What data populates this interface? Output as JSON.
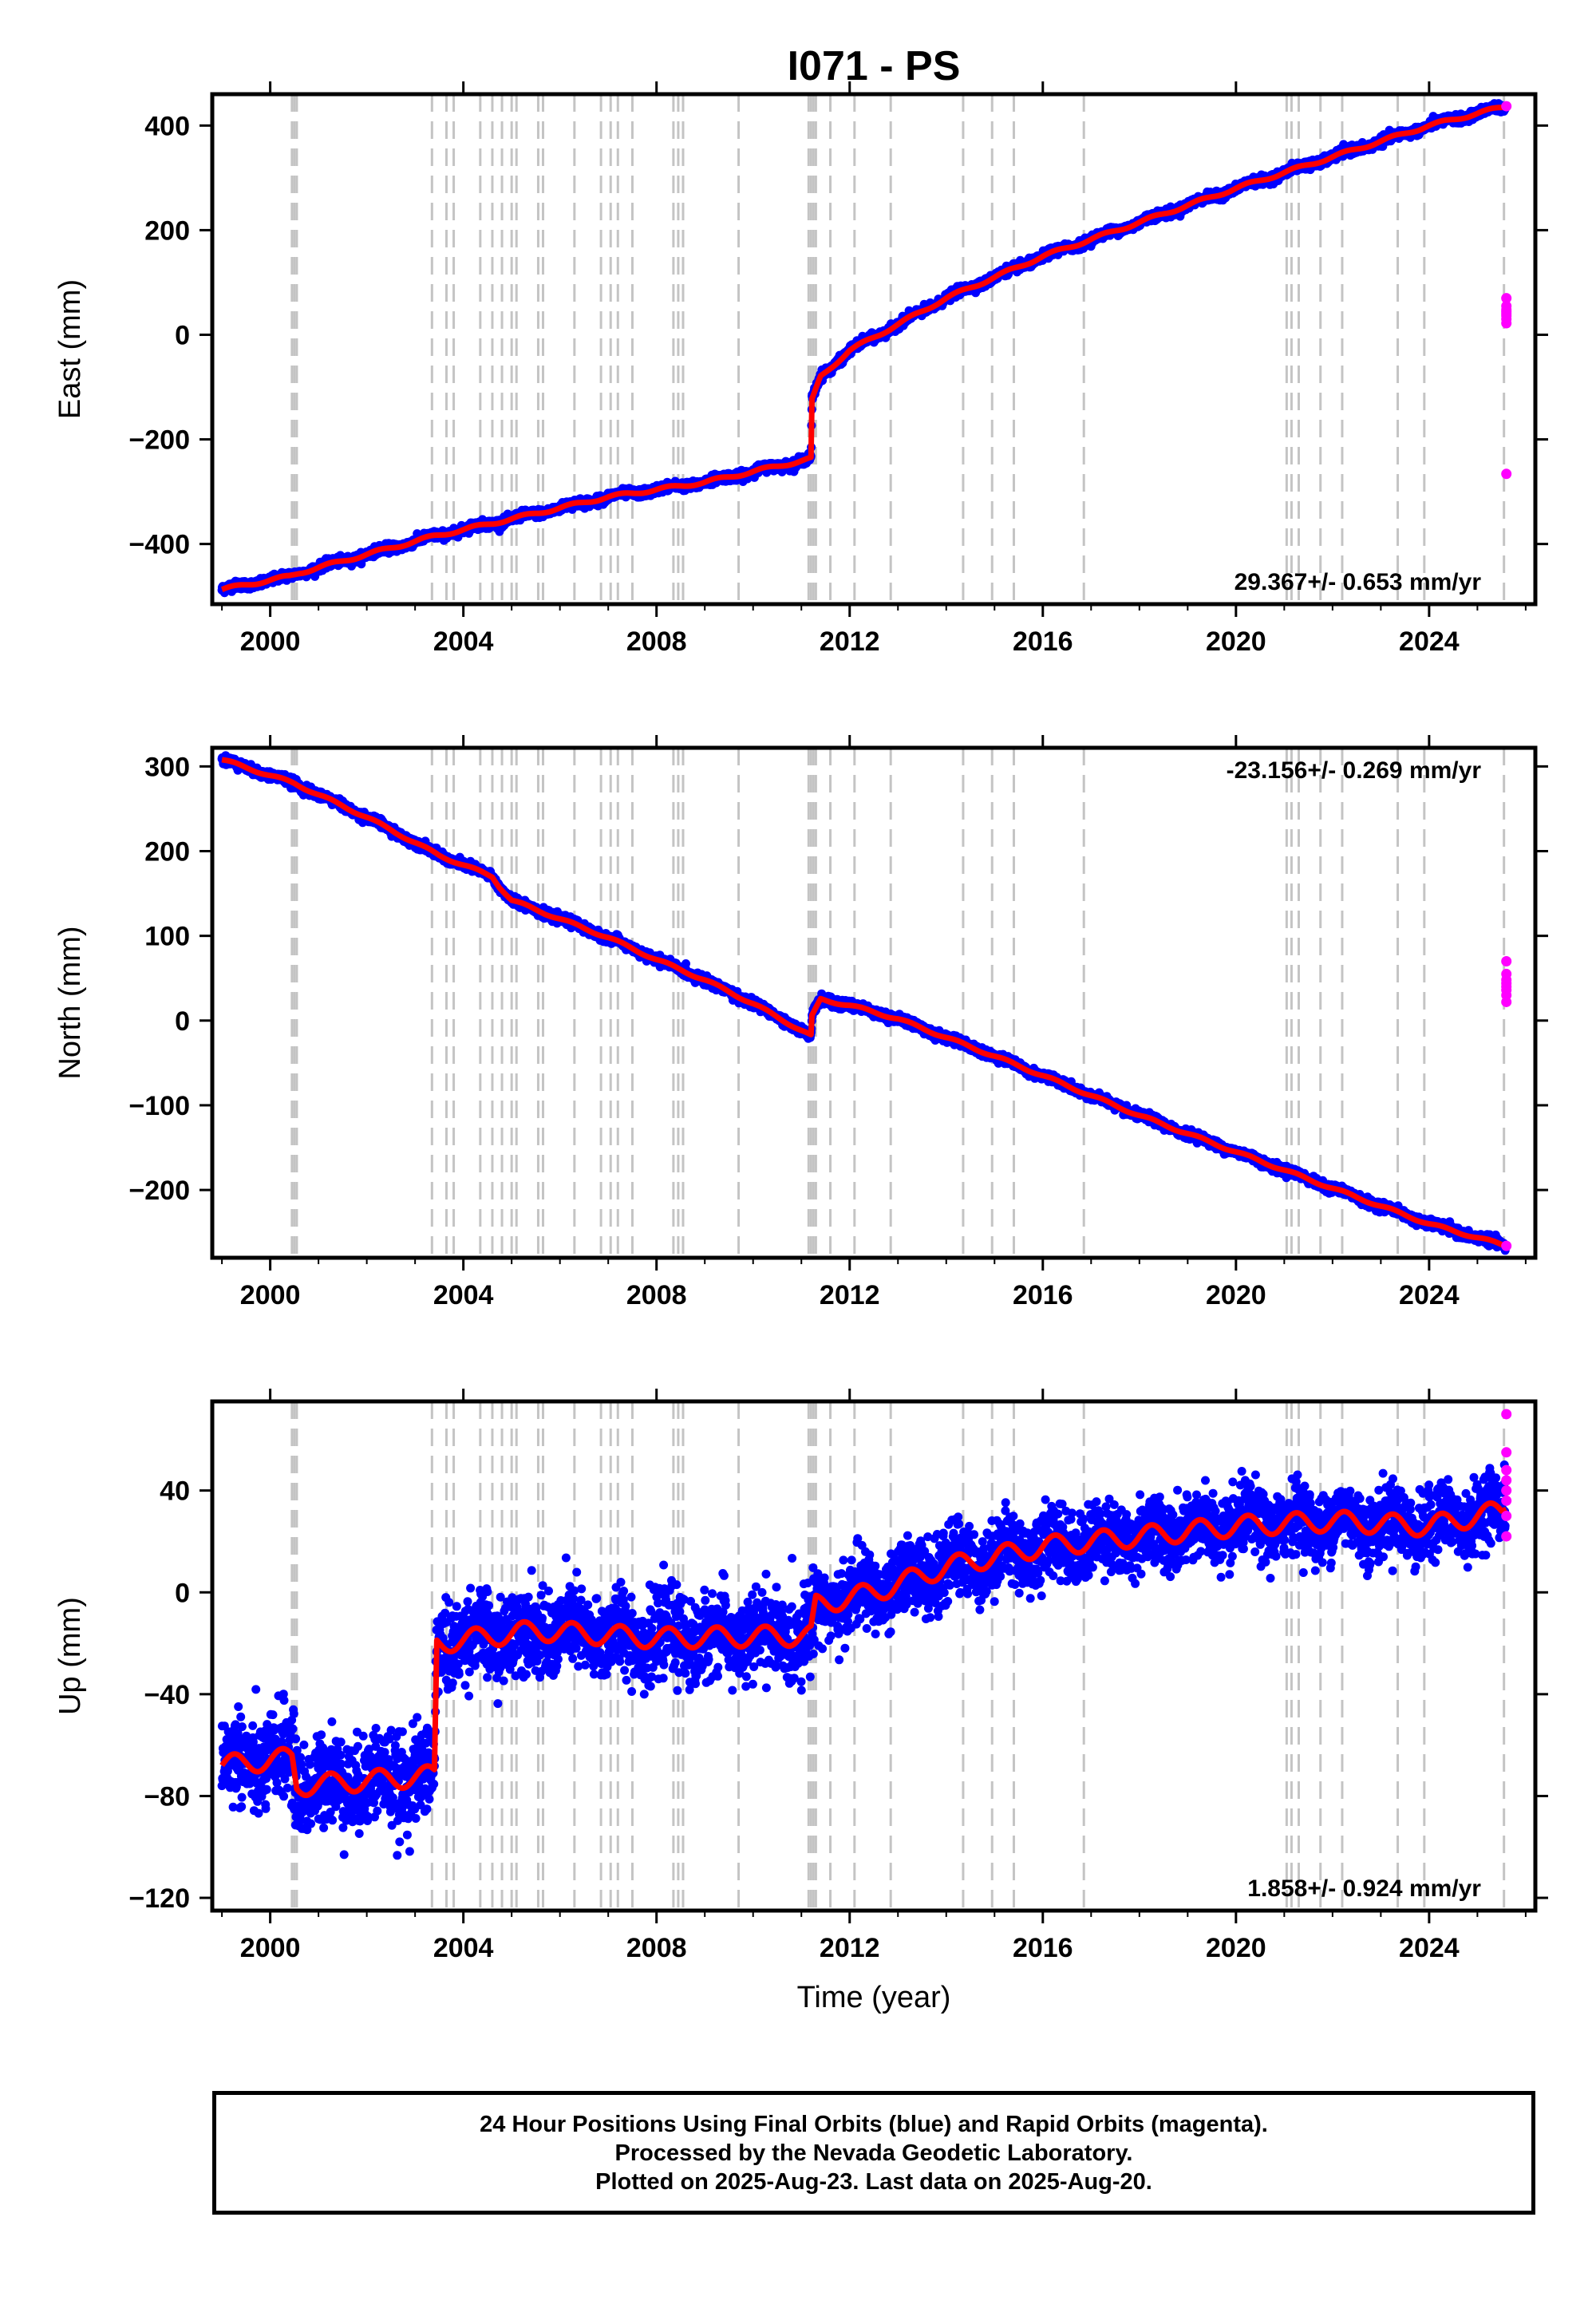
{
  "chart_data": {
    "title": "I071 - PS",
    "type": "scatter",
    "xlabel": "Time (year)",
    "xlim": [
      1998.8,
      2026.2
    ],
    "xticks": [
      2000,
      2004,
      2008,
      2012,
      2016,
      2020,
      2024
    ],
    "xtick_labels": [
      "2000",
      "2004",
      "2008",
      "2012",
      "2016",
      "2020",
      "2024"
    ],
    "legend": [
      {
        "name": "Final Orbits",
        "color": "#0000ff"
      },
      {
        "name": "Rapid Orbits",
        "color": "#ff00ff"
      },
      {
        "name": "Model fit",
        "color": "#ff0000"
      }
    ],
    "event_lines_year": [
      2000.45,
      2000.5,
      2000.55,
      2003.35,
      2003.65,
      2003.8,
      2004.35,
      2004.6,
      2004.8,
      2005.0,
      2005.1,
      2005.55,
      2005.65,
      2006.3,
      2006.85,
      2007.05,
      2007.2,
      2007.5,
      2008.35,
      2008.45,
      2008.55,
      2009.7,
      2011.15,
      2011.2,
      2011.25,
      2011.3,
      2011.6,
      2012.1,
      2012.85,
      2014.35,
      2014.95,
      2015.4,
      2016.85,
      2021.05,
      2021.15,
      2021.3,
      2021.75,
      2022.2,
      2023.35,
      2023.9,
      2025.55
    ],
    "panels": [
      {
        "ylabel": "East (mm)",
        "ylim": [
          -515,
          460
        ],
        "yticks": [
          -400,
          -200,
          0,
          200,
          400
        ],
        "ytick_labels": [
          "−400",
          "−200",
          "0",
          "200",
          "400"
        ],
        "rate_text": "29.367+/- 0.653 mm/yr",
        "rate_position": "bottom-right",
        "model_trend": [
          [
            1999.0,
            -487
          ],
          [
            2000.4,
            -462
          ],
          [
            2000.6,
            -455
          ],
          [
            2003.4,
            -385
          ],
          [
            2005.0,
            -352
          ],
          [
            2007.0,
            -310
          ],
          [
            2009.0,
            -282
          ],
          [
            2011.2,
            -237
          ],
          [
            2011.22,
            -125
          ],
          [
            2011.4,
            -80
          ],
          [
            2012.0,
            -30
          ],
          [
            2013.0,
            20
          ],
          [
            2014.0,
            70
          ],
          [
            2015.0,
            110
          ],
          [
            2016.0,
            150
          ],
          [
            2018.0,
            215
          ],
          [
            2020.0,
            280
          ],
          [
            2022.0,
            340
          ],
          [
            2024.0,
            400
          ],
          [
            2025.6,
            437
          ]
        ],
        "seasonal_amplitude": 3,
        "noise_sd": [
          [
            1999.0,
            4
          ],
          [
            2025.7,
            4
          ]
        ]
      },
      {
        "ylabel": "North (mm)",
        "ylim": [
          -280,
          322
        ],
        "yticks": [
          -200,
          -100,
          0,
          100,
          200,
          300
        ],
        "ytick_labels": [
          "−200",
          "−100",
          "0",
          "100",
          "200",
          "300"
        ],
        "rate_text": "-23.156+/- 0.269 mm/yr",
        "rate_position": "top-right",
        "model_trend": [
          [
            1999.0,
            308
          ],
          [
            2000.5,
            280
          ],
          [
            2002.0,
            240
          ],
          [
            2003.5,
            195
          ],
          [
            2004.6,
            170
          ],
          [
            2004.75,
            158
          ],
          [
            2005.0,
            142
          ],
          [
            2006.0,
            120
          ],
          [
            2007.0,
            98
          ],
          [
            2008.0,
            72
          ],
          [
            2009.0,
            48
          ],
          [
            2010.0,
            20
          ],
          [
            2011.2,
            -18
          ],
          [
            2011.22,
            5
          ],
          [
            2011.4,
            25
          ],
          [
            2012.0,
            18
          ],
          [
            2013.0,
            2
          ],
          [
            2014.0,
            -20
          ],
          [
            2015.0,
            -42
          ],
          [
            2016.0,
            -65
          ],
          [
            2018.0,
            -112
          ],
          [
            2020.0,
            -155
          ],
          [
            2022.0,
            -198
          ],
          [
            2024.0,
            -240
          ],
          [
            2025.6,
            -266
          ]
        ],
        "seasonal_amplitude": 1.5,
        "noise_sd": [
          [
            1999.0,
            2.5
          ],
          [
            2025.7,
            2.5
          ]
        ]
      },
      {
        "ylabel": "Up (mm)",
        "ylim": [
          -125,
          75
        ],
        "yticks": [
          -120,
          -80,
          -40,
          0,
          40
        ],
        "ytick_labels": [
          "−120",
          "−80",
          "−40",
          "0",
          "40"
        ],
        "rate_text": "1.858+/- 0.924 mm/yr",
        "rate_position": "bottom-right",
        "model_trend": [
          [
            1999.0,
            -68
          ],
          [
            2000.45,
            -65
          ],
          [
            2000.55,
            -76
          ],
          [
            2003.4,
            -72
          ],
          [
            2003.45,
            -20
          ],
          [
            2005.5,
            -15
          ],
          [
            2008.0,
            -18
          ],
          [
            2011.2,
            -17
          ],
          [
            2011.3,
            -5
          ],
          [
            2012.5,
            0
          ],
          [
            2014.0,
            10
          ],
          [
            2016.0,
            18
          ],
          [
            2018.0,
            22
          ],
          [
            2020.0,
            26
          ],
          [
            2022.0,
            28
          ],
          [
            2024.0,
            26
          ],
          [
            2025.5,
            32
          ],
          [
            2025.7,
            38
          ]
        ],
        "seasonal_amplitude": 4,
        "noise_sd": [
          [
            1999.0,
            9
          ],
          [
            2003.4,
            9
          ],
          [
            2003.5,
            8
          ],
          [
            2011.2,
            8
          ],
          [
            2011.3,
            7
          ],
          [
            2025.7,
            6.5
          ]
        ]
      }
    ],
    "rapid_points": [
      [
        2025.6,
        437
      ],
      [
        2025.6,
        -266
      ],
      [
        2025.6,
        70
      ],
      [
        2025.6,
        55
      ],
      [
        2025.6,
        48
      ],
      [
        2025.6,
        44
      ],
      [
        2025.6,
        40
      ],
      [
        2025.6,
        36
      ],
      [
        2025.6,
        30
      ],
      [
        2025.6,
        22
      ]
    ]
  },
  "caption": {
    "line1": "24 Hour Positions Using Final Orbits (blue) and Rapid Orbits (magenta).",
    "line2": "Processed by the Nevada Geodetic Laboratory.",
    "line3": "Plotted on 2025-Aug-23. Last data on 2025-Aug-20."
  }
}
